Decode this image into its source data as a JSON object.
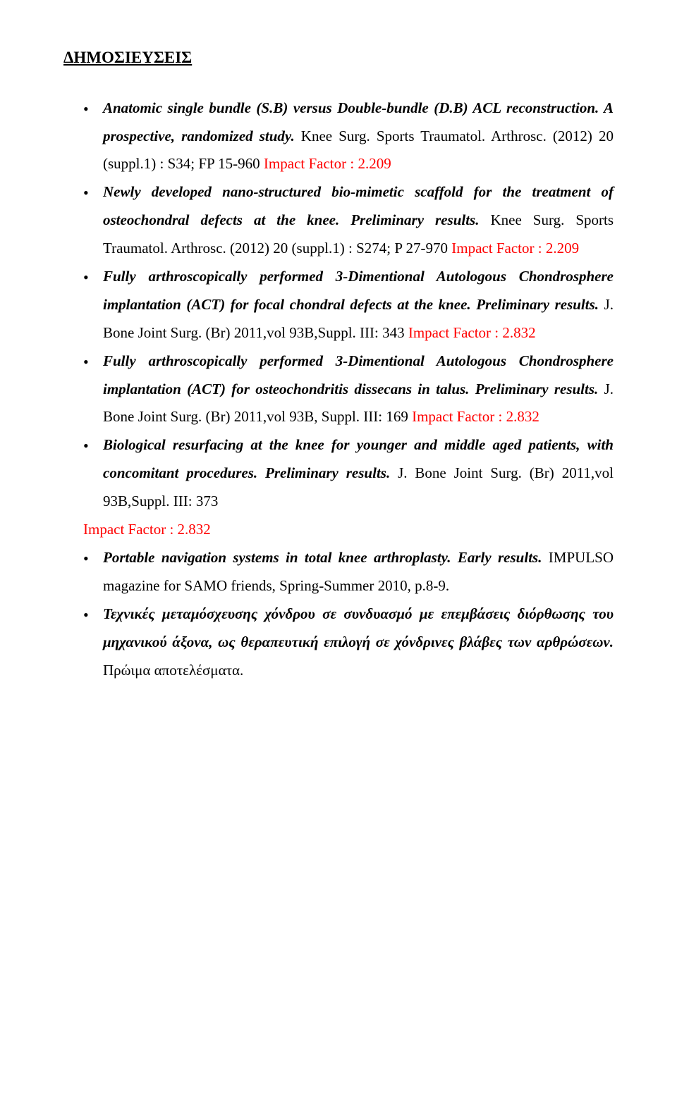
{
  "heading": "ΔΗΜΟΣΙΕΥΣΕΙΣ",
  "items": [
    {
      "title": "Anatomic single bundle (S.B) versus Double-bundle (D.B) ACL reconstruction. A prospective, randomized study.",
      "rest1": " Knee Surg. Sports Traumatol. Arthrosc. (2012) 20 (suppl.1) : S34; FP 15-960 ",
      "impact_label": "Impact Factor : 2.209"
    },
    {
      "title": "Newly developed nano-structured bio-mimetic scaffold for the treatment of osteochondral defects at the knee. Preliminary results.",
      "rest1": " Knee Surg. Sports Traumatol. Arthrosc. (2012) 20 (suppl.1) : S274; P 27-970   ",
      "impact_label": "Impact Factor : 2.209"
    },
    {
      "title": "Fully arthroscopically performed 3-Dimentional Autologous Chondrosphere implantation (ACT) for focal chondral defects at the knee. Preliminary results.",
      "rest1": " J. Bone Joint Surg. (Br) 2011,vol 93B,Suppl. III:  343 ",
      "impact_label": "Impact Factor : 2.832"
    },
    {
      "title": "Fully arthroscopically performed 3-Dimentional Autologous Chondrosphere implantation (ACT) for osteochondritis dissecans in talus. Preliminary results.",
      "rest1": " J. Bone Joint Surg. (Br) 2011,vol 93B, Suppl. III:  169  ",
      "impact_label": "Impact Factor : 2.832"
    },
    {
      "title": "Biological resurfacing at the knee for younger and middle aged patients, with concomitant procedures. Preliminary results.",
      "rest1": " J. Bone Joint Surg. (Br) 2011,vol 93B,Suppl. III:  373",
      "impact_label": "Impact Factor : 2.832",
      "impact_on_own_line": true
    },
    {
      "title": "Portable navigation systems in total knee arthroplasty. Early results.",
      "rest1": " IMPULSO magazine for SAMO friends, Spring-Summer 2010, p.8-9."
    },
    {
      "title": "Τεχνικές μεταμόσχευσης χόνδρου σε συνδυασμό με επεμβάσεις διόρθωσης του μηχανικού άξονα, ως θεραπευτική επιλογή σε χόνδρινες βλάβες των αρθρώσεων.",
      "rest1": " Πρώιμα αποτελέσματα."
    }
  ]
}
